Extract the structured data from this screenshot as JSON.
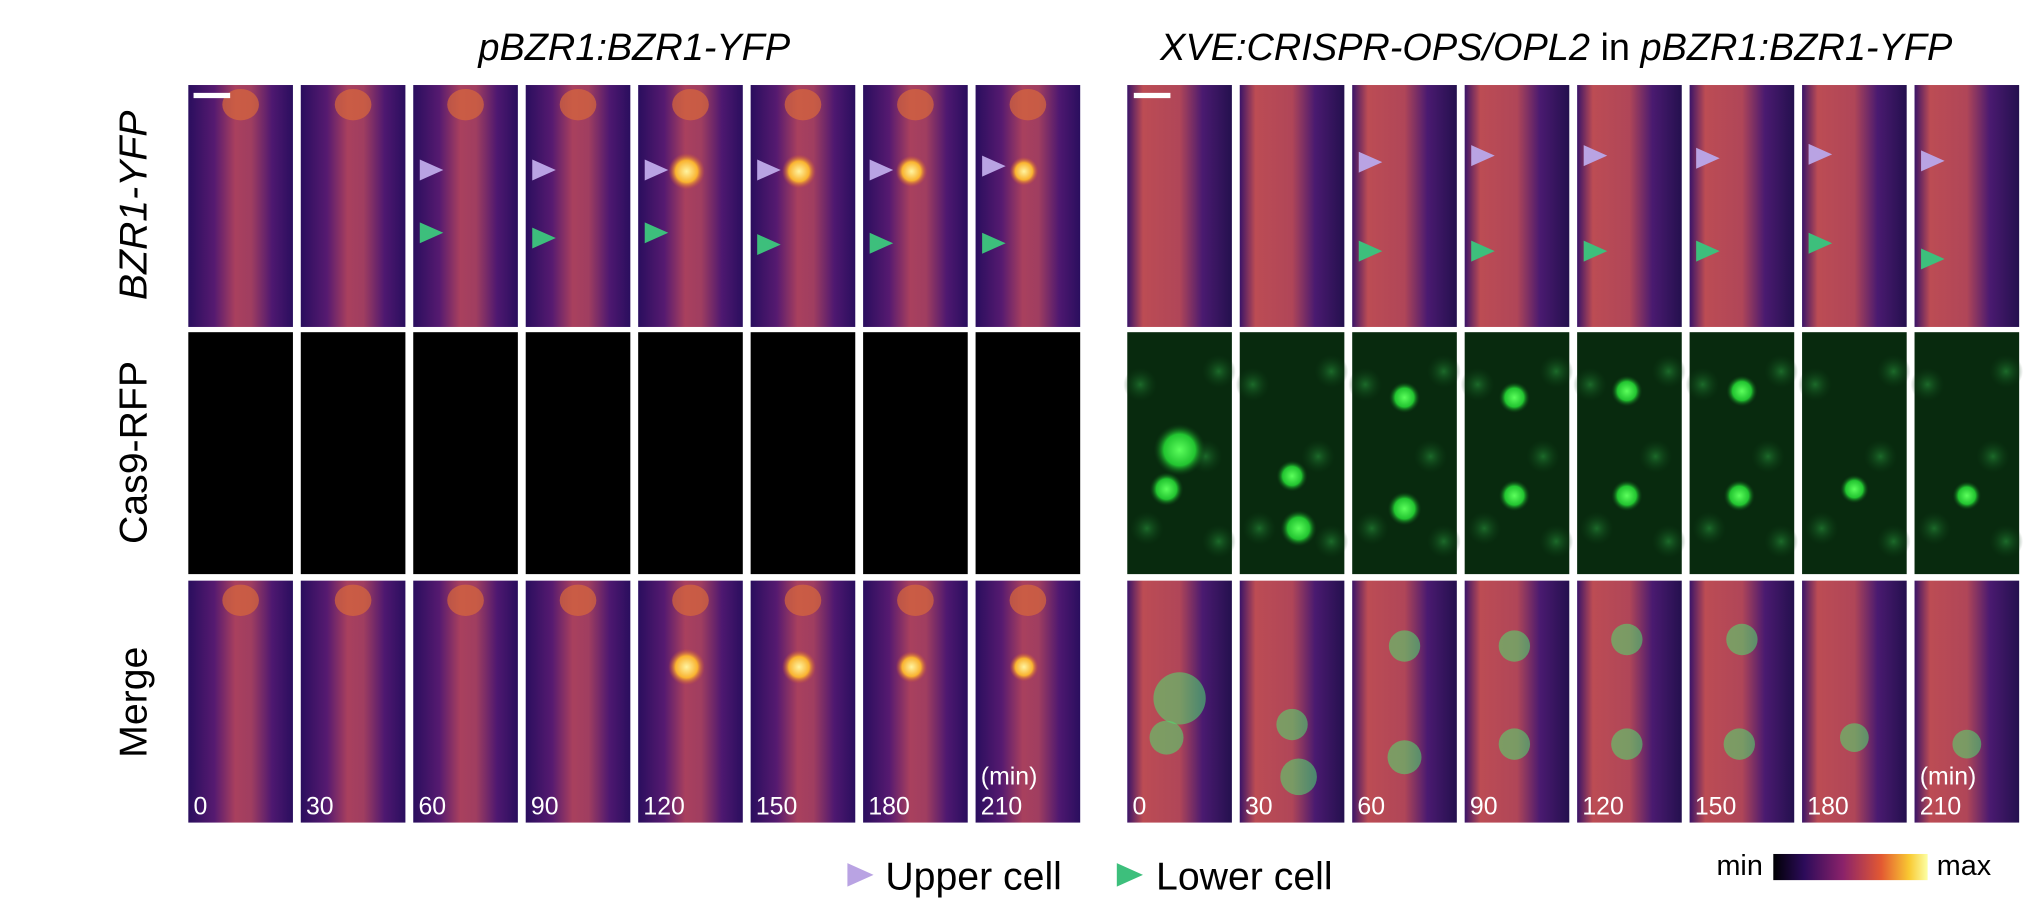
{
  "left_title": "pBZR1:BZR1-YFP",
  "right_title": {
    "construct": "XVE:CRISPR-OPS/OPL2",
    "joiner": "in",
    "background": "pBZR1:BZR1-YFP"
  },
  "row_labels": [
    "BZR1-YFP",
    "Cas9-RFP",
    "Merge"
  ],
  "time_points": [
    0,
    30,
    60,
    90,
    120,
    150,
    180,
    210
  ],
  "time_unit": "(min)",
  "legend": {
    "upper": "Upper cell",
    "lower": "Lower cell"
  },
  "colorbar": {
    "min": "min",
    "max": "max"
  }
}
